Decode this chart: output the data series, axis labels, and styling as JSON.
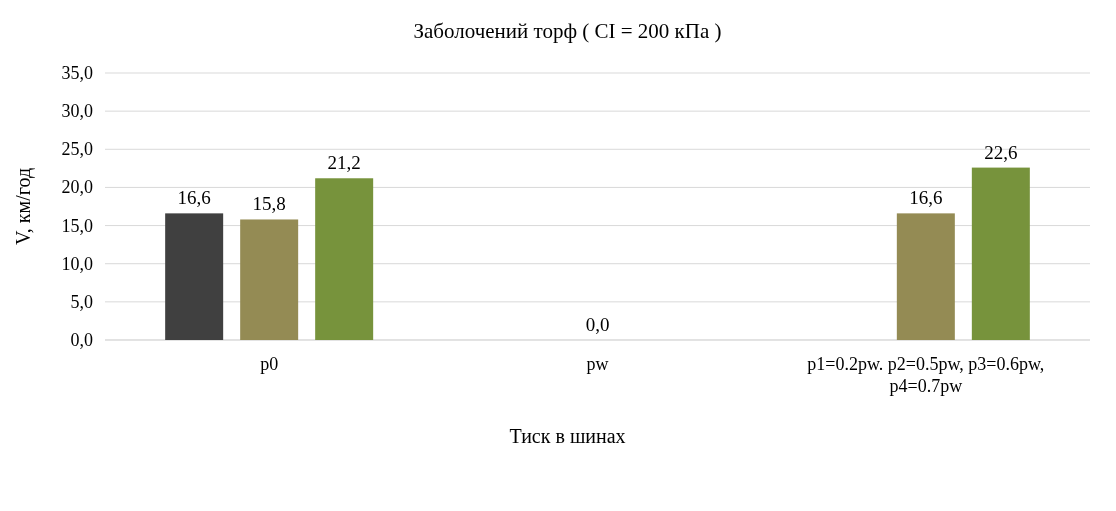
{
  "chart_data": {
    "type": "bar",
    "title": "Заболочений торф ( CI = 200 кПа )",
    "xlabel": "Тиск в шинах",
    "ylabel": "V, км/год",
    "categories": [
      "p0",
      "pw",
      "p1=0.2pw. p2=0.5pw, p3=0.6pw, p4=0.7pw"
    ],
    "series": [
      {
        "color": "#404040",
        "values": [
          16.6,
          null,
          null
        ],
        "value_labels": [
          "16,6",
          null,
          null
        ]
      },
      {
        "color": "#948b54",
        "values": [
          15.8,
          0,
          16.6
        ],
        "value_labels": [
          "15,8",
          "0,0",
          "16,6"
        ]
      },
      {
        "color": "#77933c",
        "values": [
          21.2,
          null,
          22.6
        ],
        "value_labels": [
          "21,2",
          null,
          "22,6"
        ]
      }
    ],
    "ylim": [
      0,
      35
    ],
    "yticks": [
      {
        "value": 0,
        "label": "0,0"
      },
      {
        "value": 5,
        "label": "5,0"
      },
      {
        "value": 10,
        "label": "10,0"
      },
      {
        "value": 15,
        "label": "15,0"
      },
      {
        "value": 20,
        "label": "20,0"
      },
      {
        "value": 25,
        "label": "25,0"
      },
      {
        "value": 30,
        "label": "30,0"
      },
      {
        "value": 35,
        "label": "35,0"
      }
    ],
    "grid": "y"
  }
}
